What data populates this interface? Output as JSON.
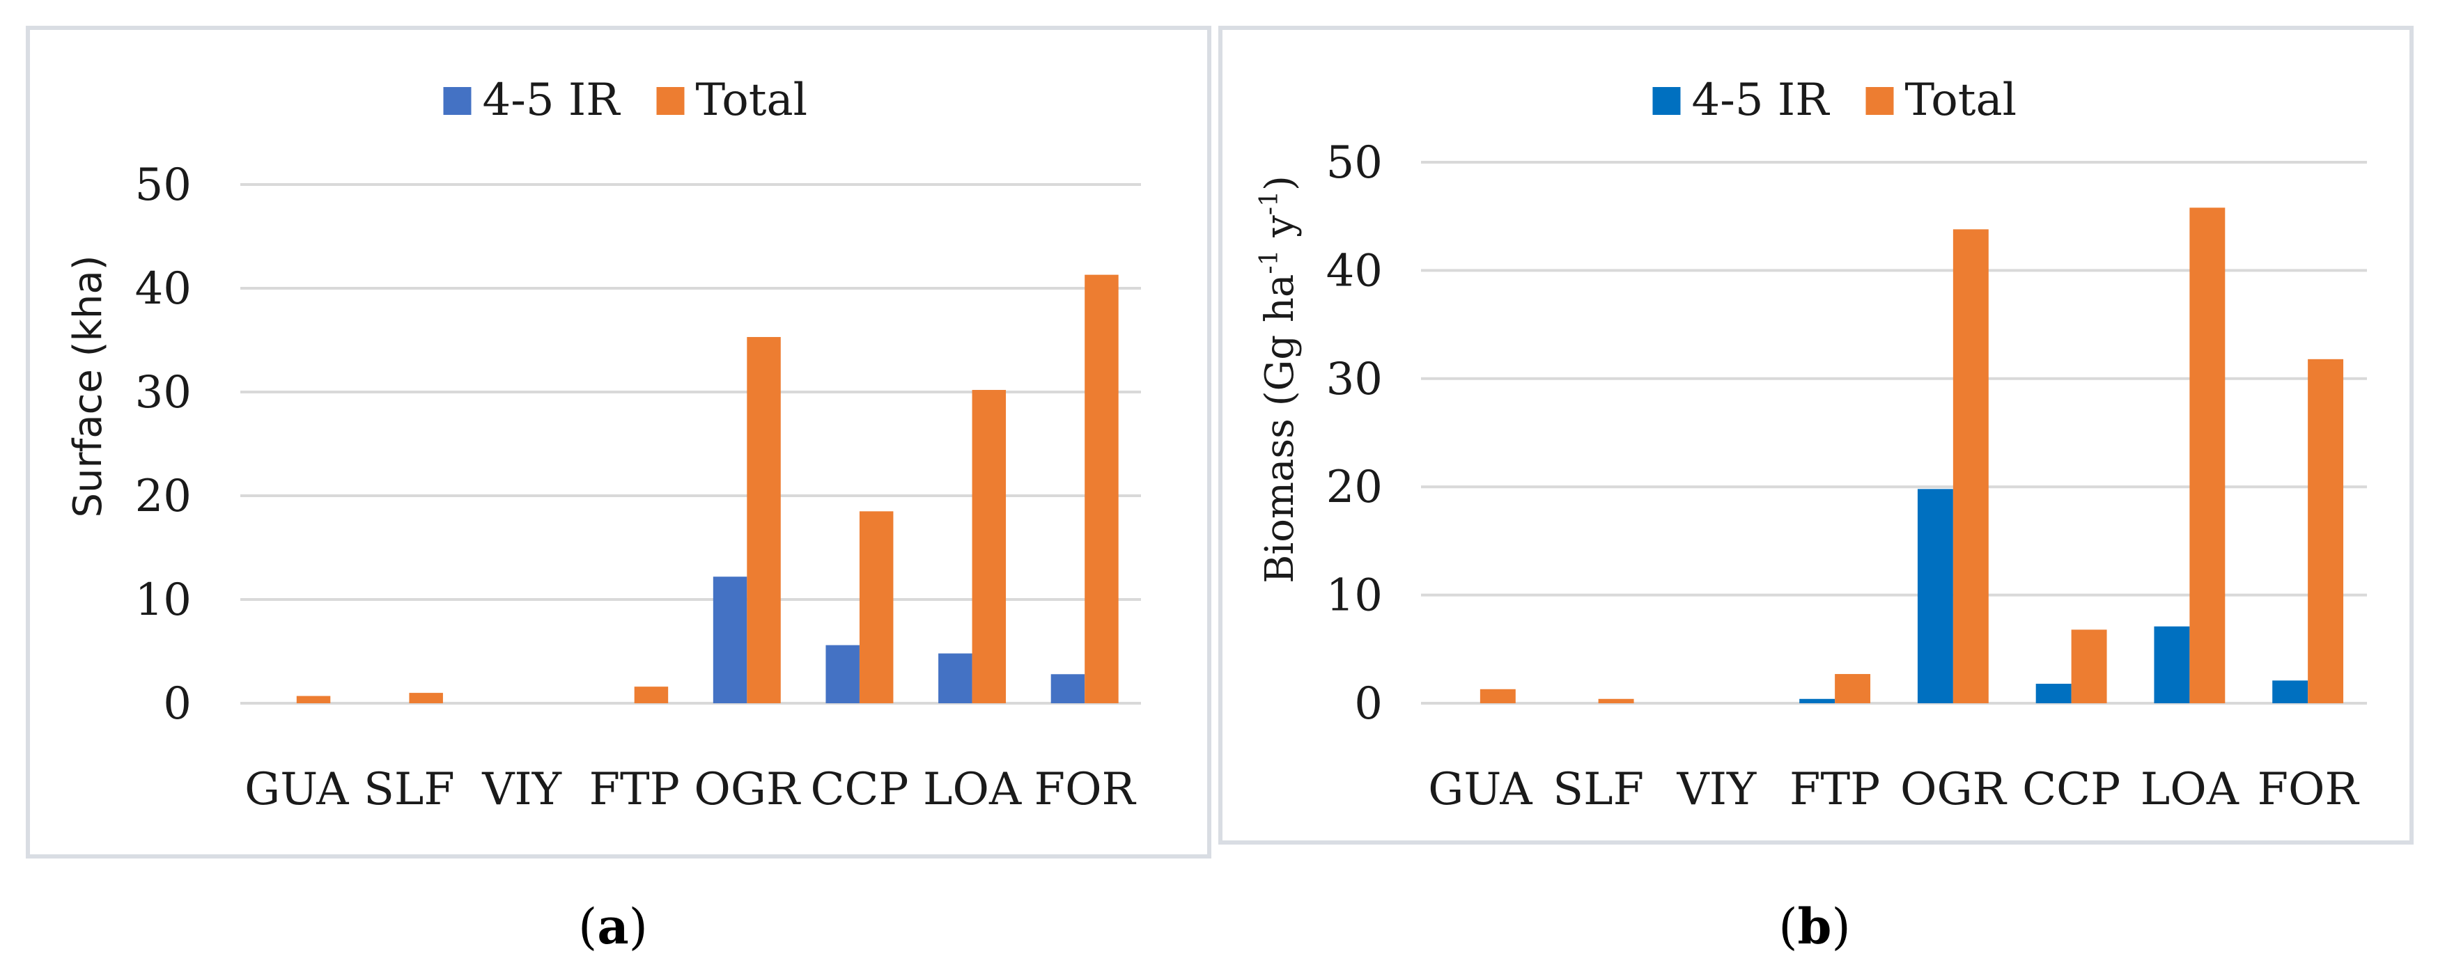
{
  "chart_data": [
    {
      "type": "bar",
      "panel": "(a)",
      "caption_letter": "a",
      "categories": [
        "GUA",
        "SLF",
        "VIY",
        "FTP",
        "OGR",
        "CCP",
        "LOA",
        "FOR"
      ],
      "series": [
        {
          "name": "4-5 IR",
          "color": "#4472c4",
          "values": [
            0,
            0,
            0,
            0,
            12.2,
            5.6,
            4.8,
            2.8
          ]
        },
        {
          "name": "Total",
          "color": "#ed7d31",
          "values": [
            0.7,
            1.0,
            0,
            1.6,
            35.3,
            18.5,
            30.2,
            41.3
          ]
        }
      ],
      "title": "",
      "xlabel": "",
      "ylabel": "Surface (kha)",
      "ylim": [
        0,
        50
      ],
      "yticks": [
        0,
        10,
        20,
        30,
        40,
        50
      ],
      "grid": true,
      "legend": "top-center"
    },
    {
      "type": "bar",
      "panel": "(b)",
      "caption_letter": "b",
      "categories": [
        "GUA",
        "SLF",
        "VIY",
        "FTP",
        "OGR",
        "CCP",
        "LOA",
        "FOR"
      ],
      "series": [
        {
          "name": "4-5 IR",
          "color": "#0070c0",
          "values": [
            0,
            0,
            0,
            0.4,
            19.8,
            1.8,
            7.1,
            2.1
          ]
        },
        {
          "name": "Total",
          "color": "#ed7d31",
          "values": [
            1.3,
            0.4,
            0,
            2.7,
            43.8,
            6.8,
            45.8,
            31.8
          ]
        }
      ],
      "title": "",
      "xlabel": "",
      "ylabel": "Biomass (Gg ha-1 y-1)",
      "ylim": [
        0,
        50
      ],
      "yticks": [
        0,
        10,
        20,
        30,
        40,
        50
      ],
      "grid": true,
      "legend": "top-center"
    }
  ],
  "labels": {
    "ylabel_b_main": "Biomass (Gg ha",
    "ylabel_b_sup1": "-1",
    "ylabel_b_mid": " y",
    "ylabel_b_sup2": "-1",
    "ylabel_b_end": ")"
  }
}
